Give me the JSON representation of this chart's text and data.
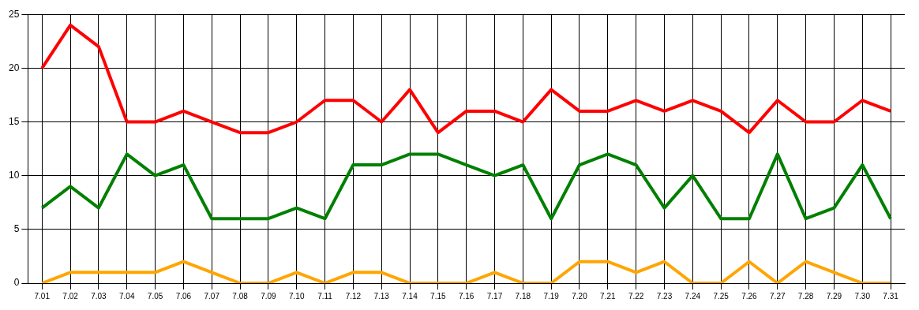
{
  "chart_data": {
    "type": "line",
    "categories": [
      "7.01",
      "7.02",
      "7.03",
      "7.04",
      "7.05",
      "7.06",
      "7.07",
      "7.08",
      "7.09",
      "7.10",
      "7.11",
      "7.12",
      "7.13",
      "7.14",
      "7.15",
      "7.16",
      "7.17",
      "7.18",
      "7.19",
      "7.20",
      "7.21",
      "7.22",
      "7.23",
      "7.24",
      "7.25",
      "7.26",
      "7.27",
      "7.28",
      "7.29",
      "7.30",
      "7.31"
    ],
    "series": [
      {
        "color": "#ff0000",
        "values": [
          20,
          24,
          22,
          15,
          15,
          16,
          15,
          14,
          14,
          15,
          17,
          17,
          15,
          18,
          14,
          16,
          16,
          15,
          18,
          16,
          16,
          17,
          16,
          17,
          16,
          14,
          17,
          15,
          15,
          17,
          16
        ]
      },
      {
        "color": "#008000",
        "values": [
          7,
          9,
          7,
          12,
          10,
          11,
          6,
          6,
          6,
          7,
          6,
          11,
          11,
          12,
          12,
          11,
          10,
          11,
          6,
          11,
          12,
          11,
          7,
          10,
          6,
          6,
          12,
          6,
          7,
          11,
          6
        ]
      },
      {
        "color": "#ffa500",
        "values": [
          0,
          1,
          1,
          1,
          1,
          2,
          1,
          0,
          0,
          1,
          0,
          1,
          1,
          0,
          0,
          0,
          1,
          0,
          0,
          2,
          2,
          1,
          2,
          0,
          0,
          2,
          0,
          2,
          1,
          0,
          0
        ]
      }
    ],
    "ylim": [
      0,
      25
    ],
    "yticks": [
      0,
      5,
      10,
      15,
      20,
      25
    ],
    "grid": true,
    "legend": false,
    "marker": "none",
    "line_style": "solid"
  }
}
